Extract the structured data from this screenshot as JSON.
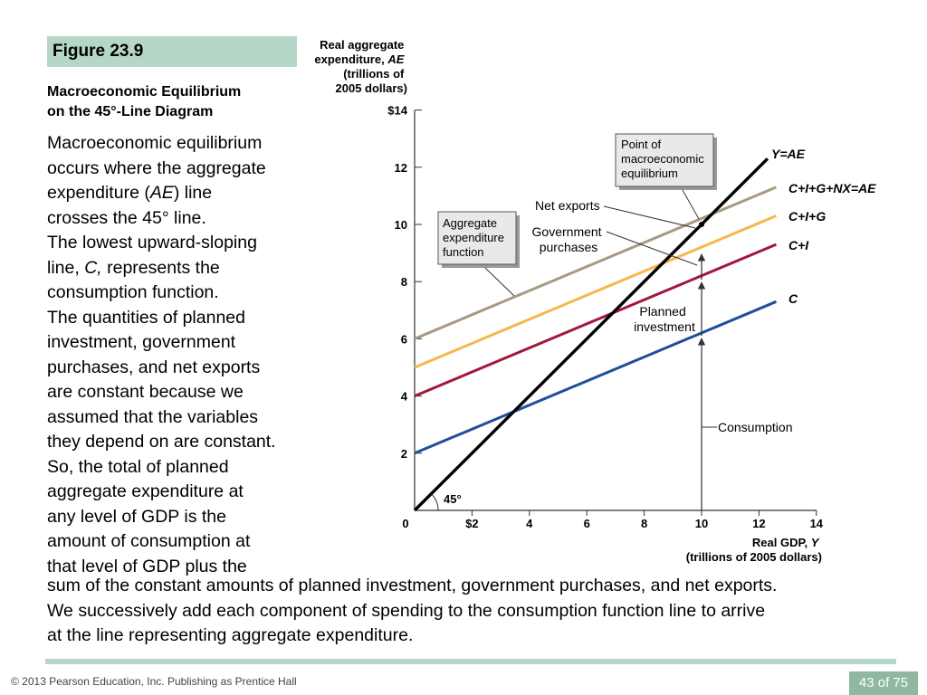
{
  "slide": {
    "figure_label": "Figure 23.9",
    "title_line1": "Macroeconomic Equilibrium",
    "title_line2": "on the 45°-Line Diagram",
    "para1": [
      "Macroeconomic equilibrium",
      "occurs where the aggregate",
      "expenditure (",
      "AE",
      ") line",
      "crosses the 45° line."
    ],
    "para2": [
      "The lowest upward-sloping",
      "line, ",
      "C,",
      " represents the",
      "consumption function."
    ],
    "para3": [
      "The quantities of planned",
      "investment, government",
      "purchases, and net exports",
      "are constant because we",
      "assumed that the variables",
      "they depend on are constant.",
      "So, the total of planned",
      "aggregate expenditure at",
      "any level of GDP is the",
      "amount of consumption at",
      "that level of GDP plus the"
    ],
    "bottom_lines": [
      "sum of the constant amounts of planned investment, government purchases, and net exports.",
      "We successively add each component of spending to the consumption function line to arrive",
      "at the line representing aggregate expenditure."
    ],
    "footer": "© 2013 Pearson Education, Inc. Publishing as Prentice Hall",
    "page_number": "43 of 75"
  },
  "chart_data": {
    "type": "line",
    "ylabel_lines": [
      "Real aggregate",
      "expenditure, ",
      "AE",
      "(trillions of",
      "2005 dollars)"
    ],
    "xlabel_lines": [
      "Real GDP, ",
      "Y",
      "(trillions of 2005 dollars)"
    ],
    "xlim": [
      0,
      14
    ],
    "ylim": [
      0,
      14
    ],
    "x_ticks": [
      0,
      2,
      4,
      6,
      8,
      10,
      12,
      14
    ],
    "x_tick_labels": [
      "0",
      "$2",
      "4",
      "6",
      "8",
      "10",
      "12",
      "14"
    ],
    "y_ticks": [
      2,
      4,
      6,
      8,
      10,
      12,
      14
    ],
    "y_tick_labels": [
      "2",
      "4",
      "6",
      "8",
      "10",
      "12",
      "$14"
    ],
    "series": [
      {
        "name": "C",
        "color": "#1f4e9c",
        "x": [
          0,
          12.6
        ],
        "y": [
          2,
          7.3
        ]
      },
      {
        "name": "C+I",
        "color": "#a3173a",
        "x": [
          0,
          12.6
        ],
        "y": [
          4,
          9.3
        ]
      },
      {
        "name": "C+I+G",
        "color": "#f8b64c",
        "x": [
          0,
          12.6
        ],
        "y": [
          5,
          10.3
        ]
      },
      {
        "name": "C+I+G+NX=AE",
        "color": "#a89a80",
        "x": [
          0,
          12.6
        ],
        "y": [
          6,
          11.3
        ]
      },
      {
        "name": "Y=AE",
        "color": "#000000",
        "x": [
          0,
          12.3
        ],
        "y": [
          0,
          12.3
        ]
      }
    ],
    "annotations": {
      "angle": "45°",
      "planned_investment": [
        "Planned",
        "investment"
      ],
      "consumption": "Consumption",
      "government_purchases": [
        "Government",
        "purchases"
      ],
      "net_exports": "Net exports",
      "ae_box": [
        "Aggregate",
        "expenditure",
        "function"
      ],
      "equilibrium_box": [
        "Point of",
        "macroeconomic",
        "equilibrium"
      ]
    },
    "equilibrium": {
      "x": 10,
      "y": 10
    },
    "colors": {
      "box_fill": "#e9e9e9",
      "box_border": "#555555",
      "arrow": "#333333"
    }
  }
}
